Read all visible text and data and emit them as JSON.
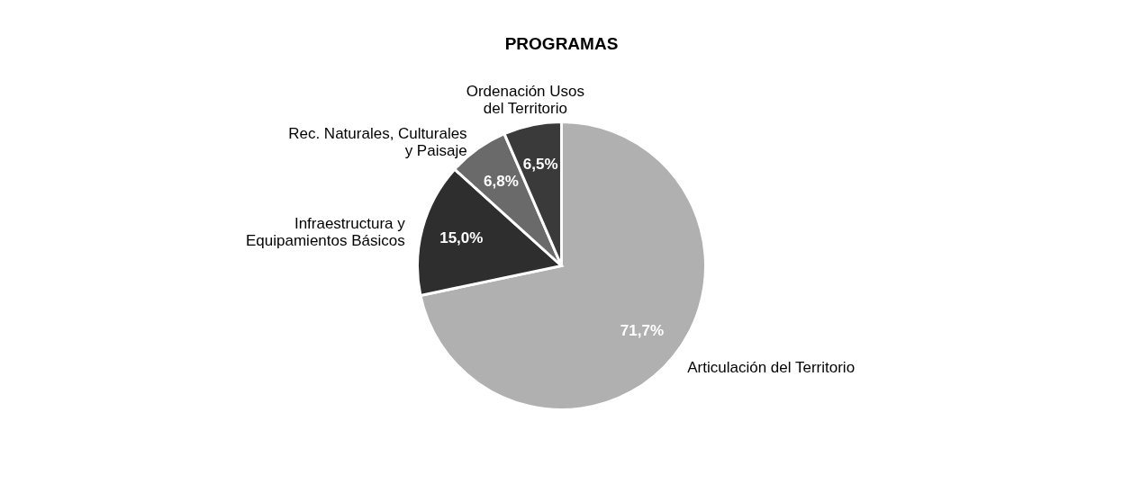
{
  "chart_data": {
    "type": "pie",
    "title": "PROGRAMAS",
    "categories": [
      "Articulación del Territorio",
      "Infraestructura y\nEquipamientos Básicos",
      "Rec. Naturales, Culturales\ny Paisaje",
      "Ordenación Usos\ndel Territorio"
    ],
    "values": [
      71.7,
      15.0,
      6.8,
      6.5
    ],
    "value_labels": [
      "71,7%",
      "15,0%",
      "6,8%",
      "6,5%"
    ],
    "colors": [
      "#b0b0b0",
      "#2e2e2e",
      "#6a6a6a",
      "#3a3a3a"
    ],
    "legend": false
  }
}
